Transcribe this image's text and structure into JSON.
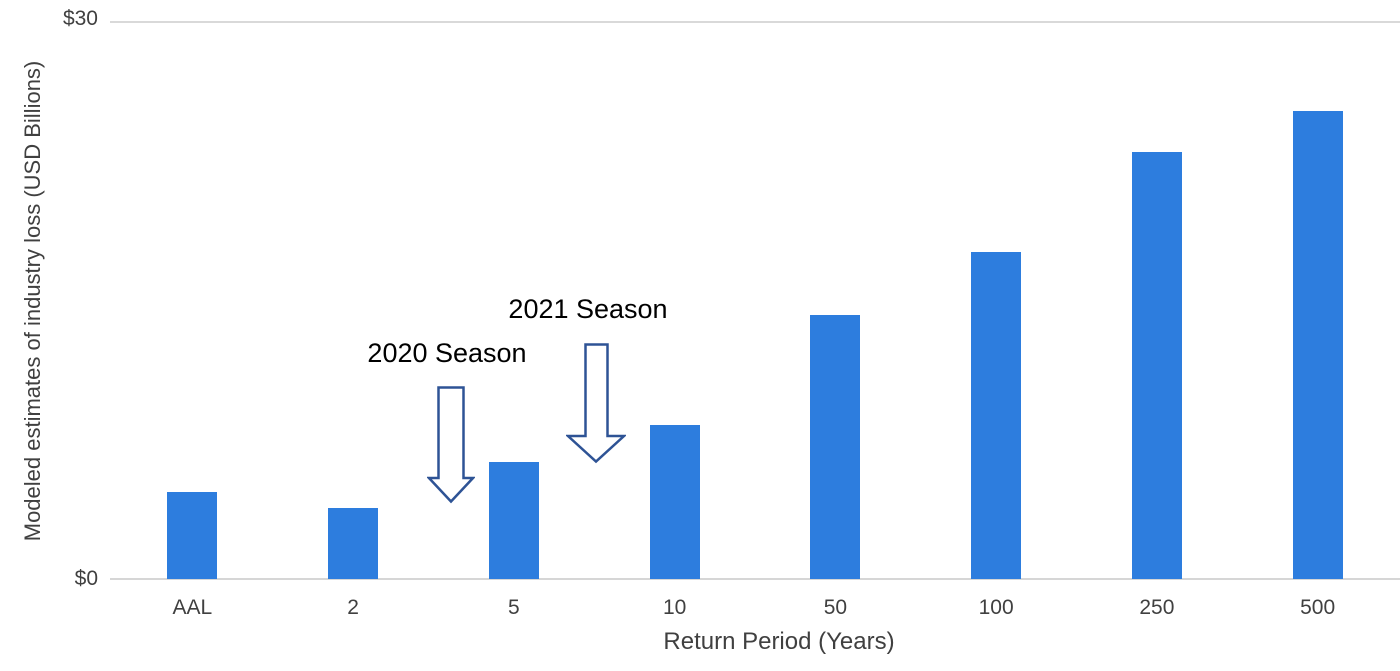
{
  "chart_data": {
    "type": "bar",
    "title": "",
    "categories": [
      "AAL",
      "2",
      "5",
      "10",
      "50",
      "100",
      "250",
      "500"
    ],
    "values": [
      4.7,
      3.8,
      6.3,
      8.3,
      14.2,
      17.6,
      23.0,
      25.2
    ],
    "xlabel": "Return Period (Years)",
    "ylabel": "Modeled estimates of industry loss (USD Billions)",
    "ylim": [
      0,
      30
    ],
    "yticks": [
      {
        "value": 0,
        "label": "$0"
      },
      {
        "value": 30,
        "label": "$30"
      }
    ],
    "grid": "horizontal gridline at top ($30) and baseline axis only",
    "legend_position": "none",
    "bar_color": "#2d7dde",
    "gridline_color": "#d9d9d9",
    "axis_text_color": "#404040",
    "annotation_arrow_stroke": "#2e5395",
    "annotations": [
      {
        "label": "2020 Season",
        "arrow": "down",
        "points_between": [
          "2",
          "5"
        ]
      },
      {
        "label": "2021 Season",
        "arrow": "down",
        "points_between": [
          "5",
          "10"
        ]
      }
    ]
  }
}
